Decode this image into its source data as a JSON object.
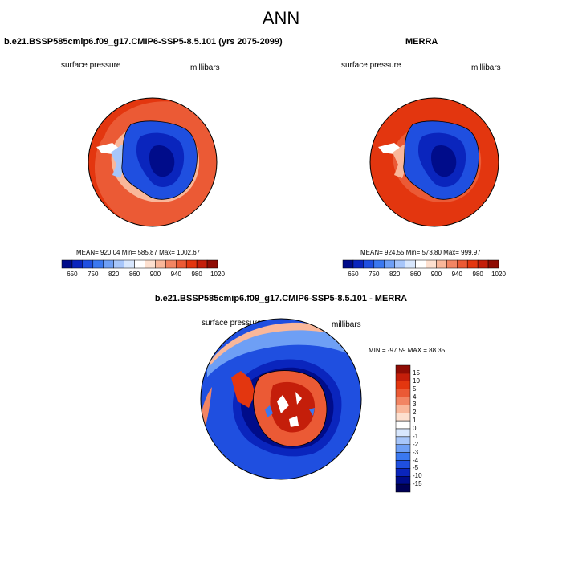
{
  "main_title": "ANN",
  "chart_data": [
    {
      "type": "heatmap",
      "title": "b.e21.BSSP585cmip6.f09_g17.CMIP6-SSP5-8.5.101 (yrs 2075-2099)",
      "field_label": "surface pressure",
      "units_label": "millibars",
      "stats": {
        "mean": 920.04,
        "min": 585.87,
        "max": 1002.67
      },
      "stats_text": "MEAN= 920.04   Min= 585.87   Max= 1002.67",
      "colorbar": {
        "ticks": [
          "650",
          "750",
          "820",
          "860",
          "900",
          "940",
          "980",
          "1020"
        ],
        "colors": [
          "#000c8a",
          "#0a25bd",
          "#1f4fe0",
          "#3a78f0",
          "#6e9ff5",
          "#a7c6fa",
          "#d8e7fd",
          "#ffffff",
          "#fde0cf",
          "#f9b79a",
          "#f28563",
          "#eb5a35",
          "#e3360f",
          "#c41e0a",
          "#8f0c04"
        ]
      }
    },
    {
      "type": "heatmap",
      "title": "MERRA",
      "field_label": "surface pressure",
      "units_label": "millibars",
      "stats": {
        "mean": 924.55,
        "min": 573.8,
        "max": 999.97
      },
      "stats_text": "MEAN= 924.55   Min= 573.80   Max= 999.97",
      "colorbar": {
        "ticks": [
          "650",
          "750",
          "820",
          "860",
          "900",
          "940",
          "980",
          "1020"
        ],
        "colors": [
          "#000c8a",
          "#0a25bd",
          "#1f4fe0",
          "#3a78f0",
          "#6e9ff5",
          "#a7c6fa",
          "#d8e7fd",
          "#ffffff",
          "#fde0cf",
          "#f9b79a",
          "#f28563",
          "#eb5a35",
          "#e3360f",
          "#c41e0a",
          "#8f0c04"
        ]
      }
    },
    {
      "type": "heatmap",
      "title": "b.e21.BSSP585cmip6.f09_g17.CMIP6-SSP5-8.5.101 - MERRA",
      "field_label": "surface pressure",
      "units_label": "millibars",
      "stats": {
        "min": -97.59,
        "max": 88.35
      },
      "stats_text": "MIN = -97.59 MAX =  88.35",
      "colorbar": {
        "ticks": [
          "15",
          "10",
          "5",
          "4",
          "3",
          "2",
          "1",
          "0",
          "-1",
          "-2",
          "-3",
          "-4",
          "-5",
          "-10",
          "-15"
        ],
        "colors": [
          "#8f0c04",
          "#c41e0a",
          "#e3360f",
          "#eb5a35",
          "#f28563",
          "#f9b79a",
          "#fde0cf",
          "#ffffff",
          "#d8e7fd",
          "#a7c6fa",
          "#6e9ff5",
          "#3a78f0",
          "#1f4fe0",
          "#0a25bd",
          "#000c8a",
          "#000055"
        ]
      }
    }
  ]
}
